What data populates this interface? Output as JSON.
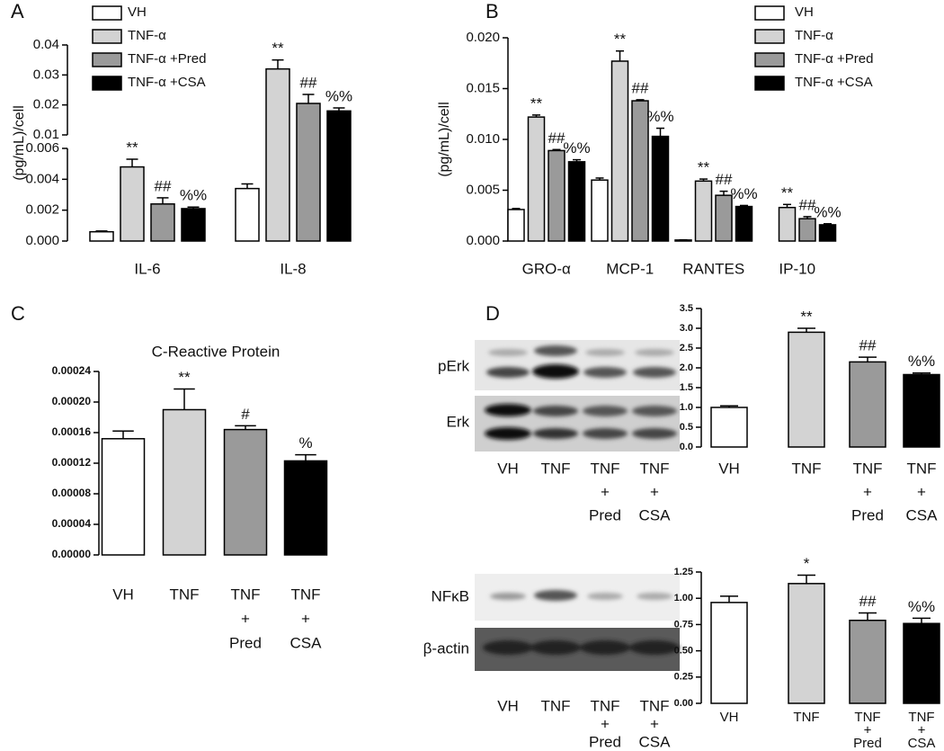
{
  "panel_labels": [
    "A",
    "B",
    "C",
    "D"
  ],
  "blots": [
    {
      "rows": [
        "pErk",
        "Erk"
      ],
      "lanes": [
        [
          "VH"
        ],
        [
          "TNF"
        ],
        [
          "TNF",
          "+",
          "Pred"
        ],
        [
          "TNF",
          "+",
          "CSA"
        ]
      ]
    },
    {
      "rows": [
        "NFκB",
        "β-actin"
      ],
      "lanes": [
        [
          "VH"
        ],
        [
          "TNF"
        ],
        [
          "TNF",
          "+",
          "Pred"
        ],
        [
          "TNF",
          "+",
          "CSA"
        ]
      ]
    }
  ],
  "chart_data": [
    {
      "type": "bar",
      "ylabel": "(pg/mL)/cell",
      "categories": [
        "IL-6",
        "IL-8"
      ],
      "ylim_segments": [
        [
          0,
          0.006
        ],
        [
          0.01,
          0.04
        ]
      ],
      "yticks": [
        {
          "value": 0,
          "label": "0.000"
        },
        0.002,
        0.004,
        0.006,
        0.01,
        0.02,
        0.03,
        0.04
      ],
      "series": [
        {
          "name": "VH",
          "color": "#ffffff",
          "values": [
            0.0006,
            0.0034
          ],
          "errors": [
            5e-05,
            0.0003
          ]
        },
        {
          "name": "TNF-α",
          "color": "#d3d3d3",
          "values": [
            0.0048,
            0.032
          ],
          "errors": [
            0.0005,
            0.003
          ],
          "sig_labels": [
            "**",
            "**"
          ]
        },
        {
          "name": "TNF-α +Pred",
          "color": "#9a9a9a",
          "values": [
            0.0024,
            0.0205
          ],
          "errors": [
            0.0004,
            0.003
          ],
          "sig_labels": [
            "##",
            "##"
          ]
        },
        {
          "name": "TNF-α +CSA",
          "color": "#000000",
          "values": [
            0.0021,
            0.018
          ],
          "errors": [
            0.0001,
            0.001
          ],
          "sig_labels": [
            "%%",
            "%%"
          ]
        }
      ]
    },
    {
      "type": "bar",
      "ylabel": "(pg/mL)/cell",
      "categories": [
        "GRO-α",
        "MCP-1",
        "RANTES",
        "IP-10"
      ],
      "ylim": [
        0,
        0.02
      ],
      "yticks": [
        {
          "value": 0,
          "label": "0.000"
        },
        0.005,
        {
          "value": 0.01,
          "label": "0.010"
        },
        0.015,
        {
          "value": 0.02,
          "label": "0.020"
        }
      ],
      "series": [
        {
          "name": "VH",
          "color": "#ffffff",
          "values": [
            0.0031,
            0.006,
            0.0001,
            0
          ],
          "errors": [
            0.0001,
            0.0002,
            2e-05,
            0
          ]
        },
        {
          "name": "TNF-α",
          "color": "#d3d3d3",
          "values": [
            0.0122,
            0.0177,
            0.0059,
            0.0033
          ],
          "errors": [
            0.0002,
            0.001,
            0.0002,
            0.0003
          ],
          "sig_labels": [
            "**",
            "**",
            "**",
            "**"
          ]
        },
        {
          "name": "TNF-α +Pred",
          "color": "#9a9a9a",
          "values": [
            0.0089,
            0.0138,
            0.0045,
            0.0022
          ],
          "errors": [
            0.0001,
            0.0001,
            0.0004,
            0.0002
          ],
          "sig_labels": [
            "##",
            "##",
            "##",
            "##"
          ]
        },
        {
          "name": "TNF-α +CSA",
          "color": "#000000",
          "values": [
            0.0078,
            0.0103,
            0.0034,
            0.0016
          ],
          "errors": [
            0.0002,
            0.0008,
            0.0001,
            0.0001
          ],
          "sig_labels": [
            "%%",
            "%%",
            "%%",
            "%%"
          ]
        }
      ]
    },
    {
      "type": "bar",
      "title": "C-Reactive Protein",
      "categories": [
        [
          "VH"
        ],
        [
          "TNF"
        ],
        [
          "TNF",
          "+",
          "Pred"
        ],
        [
          "TNF",
          "+",
          "CSA"
        ]
      ],
      "ylim": [
        0,
        0.00024
      ],
      "yticks": [
        {
          "value": 0,
          "label": "0.00000"
        },
        {
          "value": 4e-05,
          "label": "0.00004"
        },
        {
          "value": 8e-05,
          "label": "0.00008"
        },
        {
          "value": 0.00012,
          "label": "0.00012"
        },
        {
          "value": 0.00016,
          "label": "0.00016"
        },
        {
          "value": 0.0002,
          "label": "0.00020"
        },
        {
          "value": 0.00024,
          "label": "0.00024"
        }
      ],
      "values": [
        0.000152,
        0.00019,
        0.000164,
        0.000123
      ],
      "errors": [
        1e-05,
        2.7e-05,
        5e-06,
        8e-06
      ],
      "colors": [
        "#ffffff",
        "#d3d3d3",
        "#9a9a9a",
        "#000000"
      ],
      "sig_labels": [
        null,
        "**",
        "#",
        "%"
      ]
    },
    {
      "type": "bar",
      "categories": [
        [
          "VH"
        ],
        [
          "TNF"
        ],
        [
          "TNF",
          "+",
          "Pred"
        ],
        [
          "TNF",
          "+",
          "CSA"
        ]
      ],
      "ylim": [
        0,
        3.5
      ],
      "yticks": [
        {
          "value": 0,
          "label": "0.0"
        },
        0.5,
        {
          "value": 1,
          "label": "1.0"
        },
        1.5,
        {
          "value": 2,
          "label": "2.0"
        },
        2.5,
        {
          "value": 3,
          "label": "3.0"
        },
        3.5
      ],
      "values": [
        1.0,
        2.9,
        2.15,
        1.83
      ],
      "errors": [
        0.04,
        0.1,
        0.12,
        0.04
      ],
      "colors": [
        "#ffffff",
        "#d3d3d3",
        "#9a9a9a",
        "#000000"
      ],
      "sig_labels": [
        null,
        "**",
        "##",
        "%%"
      ]
    },
    {
      "type": "bar",
      "categories": [
        [
          "VH"
        ],
        [
          "TNF"
        ],
        [
          "TNF",
          "+",
          "Pred"
        ],
        [
          "TNF",
          "+",
          "CSA"
        ]
      ],
      "ylim": [
        0,
        1.25
      ],
      "yticks": [
        {
          "value": 0,
          "label": "0.00"
        },
        0.25,
        {
          "value": 0.5,
          "label": "0.50"
        },
        0.75,
        {
          "value": 1,
          "label": "1.00"
        },
        1.25
      ],
      "values": [
        0.96,
        1.14,
        0.79,
        0.76
      ],
      "errors": [
        0.06,
        0.08,
        0.07,
        0.05
      ],
      "colors": [
        "#ffffff",
        "#d3d3d3",
        "#9a9a9a",
        "#000000"
      ],
      "sig_labels": [
        null,
        "*",
        "##",
        "%%"
      ]
    }
  ]
}
